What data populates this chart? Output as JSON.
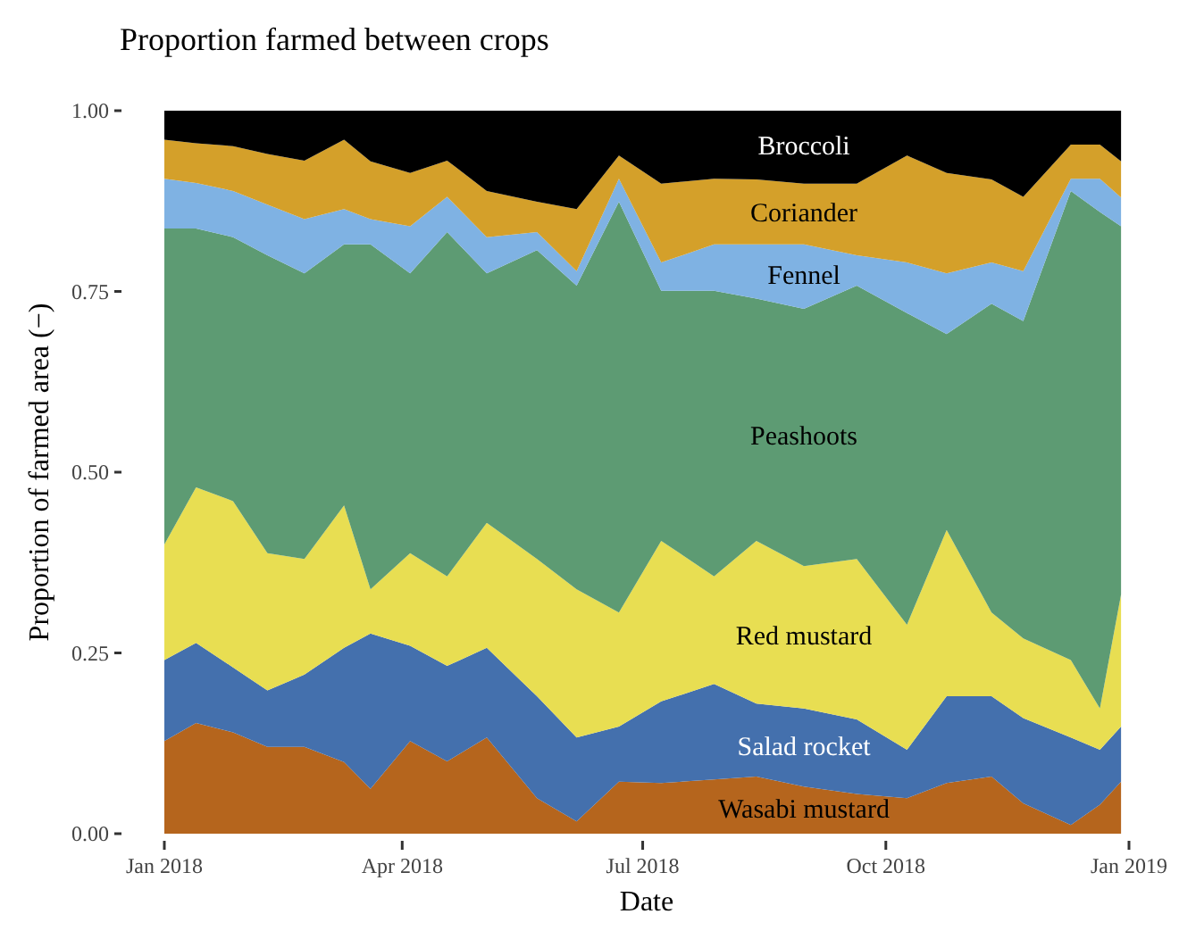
{
  "chart_data": {
    "type": "area",
    "stacked": true,
    "title": "Proportion farmed between crops",
    "xlabel": "Date",
    "ylabel": "Proportion of farmed area (−)",
    "x": [
      "2018-01-01",
      "2018-01-13",
      "2018-01-27",
      "2018-02-09",
      "2018-02-23",
      "2018-03-10",
      "2018-03-20",
      "2018-04-04",
      "2018-04-18",
      "2018-05-03",
      "2018-05-22",
      "2018-06-06",
      "2018-06-22",
      "2018-07-08",
      "2018-07-28",
      "2018-08-13",
      "2018-08-31",
      "2018-09-20",
      "2018-10-09",
      "2018-10-24",
      "2018-11-10",
      "2018-11-22",
      "2018-12-10",
      "2018-12-21",
      "2018-12-29"
    ],
    "series": [
      {
        "name": "Wasabi mustard",
        "color": "#b5651d",
        "values": [
          0.128,
          0.153,
          0.14,
          0.12,
          0.12,
          0.099,
          0.062,
          0.128,
          0.1,
          0.133,
          0.049,
          0.017,
          0.072,
          0.07,
          0.075,
          0.079,
          0.065,
          0.055,
          0.049,
          0.07,
          0.079,
          0.042,
          0.012,
          0.04,
          0.072
        ]
      },
      {
        "name": "Salad rocket",
        "color": "#4470ad",
        "values": [
          0.112,
          0.111,
          0.09,
          0.078,
          0.1,
          0.158,
          0.215,
          0.132,
          0.132,
          0.124,
          0.141,
          0.116,
          0.076,
          0.113,
          0.132,
          0.101,
          0.108,
          0.103,
          0.067,
          0.12,
          0.111,
          0.118,
          0.121,
          0.076,
          0.076
        ]
      },
      {
        "name": "Red mustard",
        "color": "#e8de52",
        "values": [
          0.16,
          0.215,
          0.23,
          0.19,
          0.16,
          0.197,
          0.061,
          0.128,
          0.124,
          0.173,
          0.19,
          0.205,
          0.158,
          0.222,
          0.149,
          0.225,
          0.197,
          0.222,
          0.173,
          0.23,
          0.116,
          0.11,
          0.107,
          0.057,
          0.183
        ]
      },
      {
        "name": "Peashoots",
        "color": "#5d9b73",
        "values": [
          0.437,
          0.358,
          0.365,
          0.412,
          0.395,
          0.361,
          0.477,
          0.387,
          0.476,
          0.345,
          0.427,
          0.42,
          0.568,
          0.346,
          0.395,
          0.335,
          0.356,
          0.378,
          0.431,
          0.271,
          0.427,
          0.439,
          0.649,
          0.687,
          0.509
        ]
      },
      {
        "name": "Fennel",
        "color": "#7fb2e3",
        "values": [
          0.069,
          0.063,
          0.064,
          0.07,
          0.075,
          0.049,
          0.035,
          0.065,
          0.049,
          0.05,
          0.025,
          0.02,
          0.032,
          0.039,
          0.064,
          0.075,
          0.089,
          0.042,
          0.07,
          0.084,
          0.057,
          0.069,
          0.017,
          0.046,
          0.04
        ]
      },
      {
        "name": "Coriander",
        "color": "#d4a02a",
        "values": [
          0.054,
          0.055,
          0.062,
          0.07,
          0.081,
          0.096,
          0.08,
          0.074,
          0.05,
          0.064,
          0.042,
          0.086,
          0.032,
          0.109,
          0.091,
          0.09,
          0.084,
          0.099,
          0.148,
          0.139,
          0.115,
          0.103,
          0.047,
          0.047,
          0.05
        ]
      },
      {
        "name": "Broccoli",
        "color": "#000000",
        "values": [
          0.04,
          0.045,
          0.049,
          0.06,
          0.069,
          0.04,
          0.07,
          0.086,
          0.069,
          0.111,
          0.126,
          0.136,
          0.062,
          0.101,
          0.094,
          0.095,
          0.101,
          0.101,
          0.062,
          0.086,
          0.095,
          0.119,
          0.047,
          0.047,
          0.07
        ]
      }
    ],
    "xlim": [
      "2018-01-01",
      "2019-01-01"
    ],
    "xticks": [
      {
        "value": "2018-01-01",
        "label": "Jan 2018"
      },
      {
        "value": "2018-04-01",
        "label": "Apr 2018"
      },
      {
        "value": "2018-07-01",
        "label": "Jul 2018"
      },
      {
        "value": "2018-10-01",
        "label": "Oct 2018"
      },
      {
        "value": "2019-01-01",
        "label": "Jan 2019"
      }
    ],
    "ylim": [
      0,
      1
    ],
    "yticks": [
      {
        "value": 0,
        "label": "0.00"
      },
      {
        "value": 0.25,
        "label": "0.25"
      },
      {
        "value": 0.5,
        "label": "0.50"
      },
      {
        "value": 0.75,
        "label": "0.75"
      },
      {
        "value": 1,
        "label": "1.00"
      }
    ],
    "grid": false
  }
}
